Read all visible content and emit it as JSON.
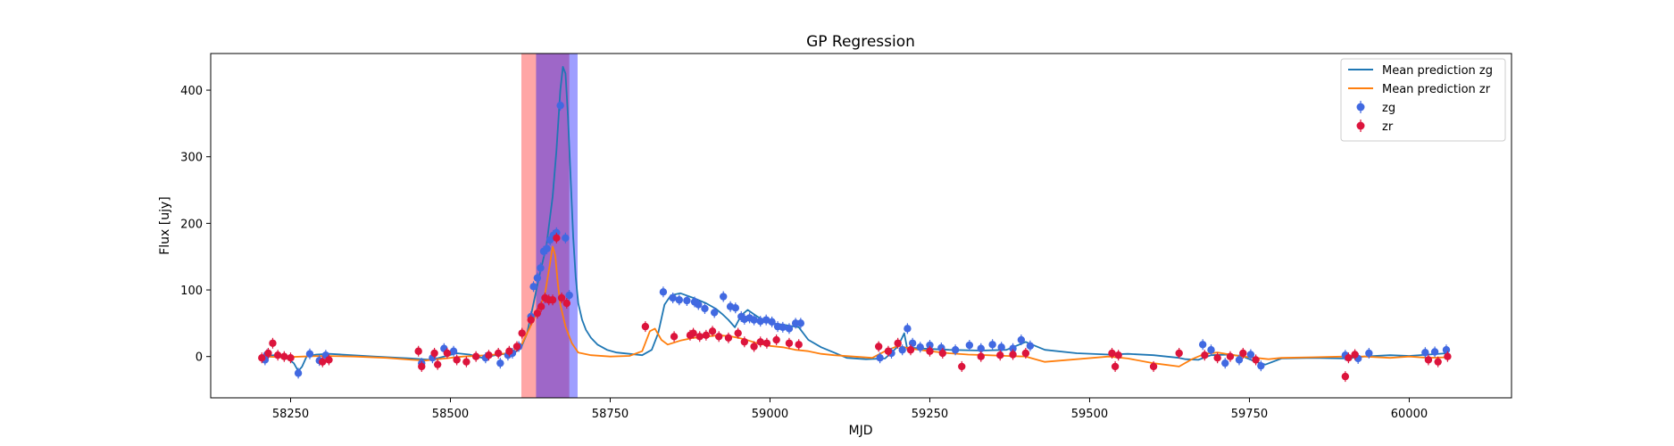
{
  "chart_data": {
    "type": "line",
    "title": "GP Regression",
    "xlabel": "MJD",
    "ylabel": "Flux [ujy]",
    "xlim": [
      58125,
      60160
    ],
    "ylim": [
      -62,
      455
    ],
    "xticks": [
      58250,
      58500,
      58750,
      59000,
      59250,
      59500,
      59750,
      60000
    ],
    "yticks": [
      0,
      100,
      200,
      300,
      400
    ],
    "grid": false,
    "legend": {
      "placement": "top-right",
      "entries": [
        {
          "label": "Mean prediction zg",
          "kind": "line",
          "color": "#1f77b4"
        },
        {
          "label": "Mean prediction zr",
          "kind": "line",
          "color": "#ff7f0e"
        },
        {
          "label": "zg",
          "kind": "marker",
          "color": "#4169e1"
        },
        {
          "label": "zr",
          "kind": "marker",
          "color": "#dc143c"
        }
      ]
    },
    "spans": [
      {
        "x0": 58611,
        "x1": 58686,
        "color": "#ff0000",
        "alpha": 0.35
      },
      {
        "x0": 58634,
        "x1": 58699,
        "color": "#0000ff",
        "alpha": 0.38
      }
    ],
    "series": [
      {
        "name": "Mean prediction zg",
        "kind": "line",
        "color": "#1f77b4",
        "x": [
          58205,
          58225,
          58245,
          58255,
          58262,
          58268,
          58275,
          58290,
          58310,
          58330,
          58380,
          58440,
          58470,
          58490,
          58510,
          58530,
          58550,
          58570,
          58585,
          58600,
          58610,
          58620,
          58630,
          58640,
          58650,
          58660,
          58666,
          58672,
          58676,
          58680,
          58684,
          58688,
          58692,
          58696,
          58700,
          58706,
          58712,
          58720,
          58730,
          58745,
          58760,
          58780,
          58800,
          58815,
          58825,
          58835,
          58845,
          58860,
          58880,
          58900,
          58915,
          58925,
          58935,
          58945,
          58955,
          58965,
          58980,
          59000,
          59020,
          59045,
          59060,
          59080,
          59100,
          59120,
          59150,
          59180,
          59200,
          59210,
          59215,
          59225,
          59240,
          59280,
          59330,
          59370,
          59390,
          59400,
          59410,
          59430,
          59480,
          59530,
          59560,
          59600,
          59640,
          59650,
          59670,
          59690,
          59720,
          59740,
          59760,
          59775,
          59800,
          59850,
          59900,
          59930,
          59970,
          60000,
          60030,
          60060
        ],
        "y": [
          0,
          2,
          -3,
          -10,
          -22,
          -15,
          0,
          3,
          4,
          3,
          0,
          -3,
          -5,
          0,
          5,
          3,
          -2,
          2,
          4,
          6,
          12,
          35,
          80,
          125,
          165,
          240,
          310,
          400,
          435,
          425,
          360,
          270,
          180,
          120,
          80,
          55,
          40,
          28,
          18,
          10,
          6,
          4,
          2,
          10,
          35,
          78,
          92,
          95,
          88,
          80,
          72,
          64,
          55,
          44,
          62,
          70,
          60,
          50,
          48,
          44,
          25,
          14,
          6,
          -2,
          -4,
          -3,
          15,
          35,
          10,
          13,
          12,
          10,
          9,
          10,
          18,
          22,
          18,
          10,
          5,
          3,
          4,
          2,
          -2,
          -4,
          -5,
          2,
          3,
          0,
          -8,
          -12,
          -3,
          -2,
          -3,
          0,
          2,
          1,
          3,
          5
        ]
      },
      {
        "name": "Mean prediction zr",
        "kind": "line",
        "color": "#ff7f0e",
        "x": [
          58205,
          58240,
          58270,
          58300,
          58350,
          58400,
          58440,
          58460,
          58480,
          58520,
          58560,
          58590,
          58610,
          58620,
          58630,
          58640,
          58648,
          58655,
          58660,
          58664,
          58668,
          58672,
          58680,
          58690,
          58700,
          58720,
          58750,
          58780,
          58800,
          58812,
          58820,
          58830,
          58840,
          58860,
          58880,
          58900,
          58920,
          58940,
          58960,
          58980,
          59000,
          59020,
          59040,
          59060,
          59080,
          59100,
          59130,
          59160,
          59180,
          59200,
          59220,
          59250,
          59280,
          59310,
          59340,
          59370,
          59400,
          59430,
          59480,
          59530,
          59560,
          59600,
          59640,
          59660,
          59680,
          59700,
          59720,
          59740,
          59760,
          59780,
          59800,
          59850,
          59900,
          59930,
          59970,
          60000,
          60030,
          60060
        ],
        "y": [
          0,
          -1,
          0,
          1,
          0,
          -2,
          -5,
          -6,
          -4,
          0,
          2,
          5,
          15,
          35,
          55,
          75,
          95,
          135,
          165,
          152,
          110,
          78,
          45,
          20,
          6,
          2,
          0,
          1,
          8,
          38,
          42,
          25,
          18,
          24,
          28,
          30,
          32,
          30,
          26,
          20,
          16,
          14,
          10,
          8,
          4,
          2,
          0,
          -2,
          8,
          16,
          12,
          8,
          5,
          3,
          2,
          1,
          0,
          -8,
          -4,
          0,
          -3,
          -10,
          -15,
          -4,
          4,
          6,
          3,
          0,
          -2,
          -4,
          -2,
          -1,
          0,
          0,
          -2,
          0,
          -2,
          -1
        ]
      },
      {
        "name": "zg",
        "kind": "scatter",
        "color": "#4169e1",
        "x": [
          58210,
          58213,
          58262,
          58280,
          58295,
          58305,
          58455,
          58472,
          58490,
          58505,
          58555,
          58578,
          58590,
          58597,
          58607,
          58626,
          58630,
          58636,
          58641,
          58646,
          58651,
          58656,
          58661,
          58666,
          58672,
          58680,
          58686,
          58833,
          58848,
          58858,
          58870,
          58882,
          58888,
          58898,
          58913,
          58927,
          58938,
          58946,
          58955,
          58960,
          58968,
          58975,
          58985,
          58994,
          59003,
          59012,
          59020,
          59030,
          59040,
          59048,
          59172,
          59190,
          59207,
          59215,
          59223,
          59235,
          59250,
          59268,
          59290,
          59312,
          59330,
          59348,
          59362,
          59380,
          59393,
          59407,
          59677,
          59690,
          59712,
          59734,
          59752,
          59768,
          59900,
          59920,
          59937,
          60025,
          60040,
          60058
        ],
        "y": [
          -5,
          3,
          -25,
          4,
          -6,
          2,
          -10,
          -2,
          12,
          8,
          -2,
          -10,
          2,
          5,
          15,
          60,
          105,
          118,
          133,
          158,
          162,
          175,
          182,
          186,
          377,
          178,
          92,
          97,
          88,
          85,
          84,
          82,
          78,
          72,
          66,
          90,
          75,
          73,
          60,
          56,
          58,
          55,
          53,
          55,
          52,
          45,
          44,
          42,
          50,
          50,
          -2,
          5,
          10,
          42,
          20,
          14,
          17,
          13,
          10,
          17,
          12,
          18,
          14,
          12,
          25,
          16,
          18,
          10,
          -10,
          -5,
          3,
          -14,
          2,
          -3,
          5,
          6,
          7,
          10
        ]
      },
      {
        "name": "zr",
        "kind": "scatter",
        "color": "#dc143c",
        "x": [
          58205,
          58215,
          58222,
          58230,
          58240,
          58250,
          58300,
          58310,
          58450,
          58455,
          58475,
          58480,
          58495,
          58510,
          58525,
          58540,
          58560,
          58575,
          58592,
          58604,
          58612,
          58626,
          58636,
          58642,
          58648,
          58654,
          58660,
          58666,
          58674,
          58682,
          58805,
          58850,
          58875,
          58880,
          58890,
          58900,
          58910,
          58920,
          58935,
          58950,
          58960,
          58975,
          58985,
          58995,
          59010,
          59030,
          59045,
          59170,
          59185,
          59200,
          59220,
          59250,
          59270,
          59300,
          59330,
          59360,
          59380,
          59400,
          59535,
          59540,
          59545,
          59600,
          59640,
          59680,
          59700,
          59720,
          59740,
          59760,
          59900,
          59905,
          59915,
          60030,
          60045,
          60060
        ],
        "y": [
          -2,
          5,
          20,
          2,
          0,
          -2,
          -8,
          -5,
          8,
          -15,
          5,
          -12,
          5,
          -5,
          -8,
          0,
          2,
          5,
          8,
          15,
          35,
          55,
          65,
          75,
          88,
          85,
          85,
          178,
          88,
          80,
          45,
          30,
          32,
          35,
          30,
          32,
          38,
          30,
          28,
          35,
          22,
          15,
          22,
          20,
          25,
          20,
          18,
          15,
          8,
          20,
          10,
          8,
          5,
          -15,
          0,
          2,
          3,
          5,
          5,
          -15,
          2,
          -15,
          5,
          2,
          -2,
          0,
          5,
          -5,
          -30,
          -2,
          3,
          -5,
          -8,
          0
        ]
      }
    ]
  }
}
